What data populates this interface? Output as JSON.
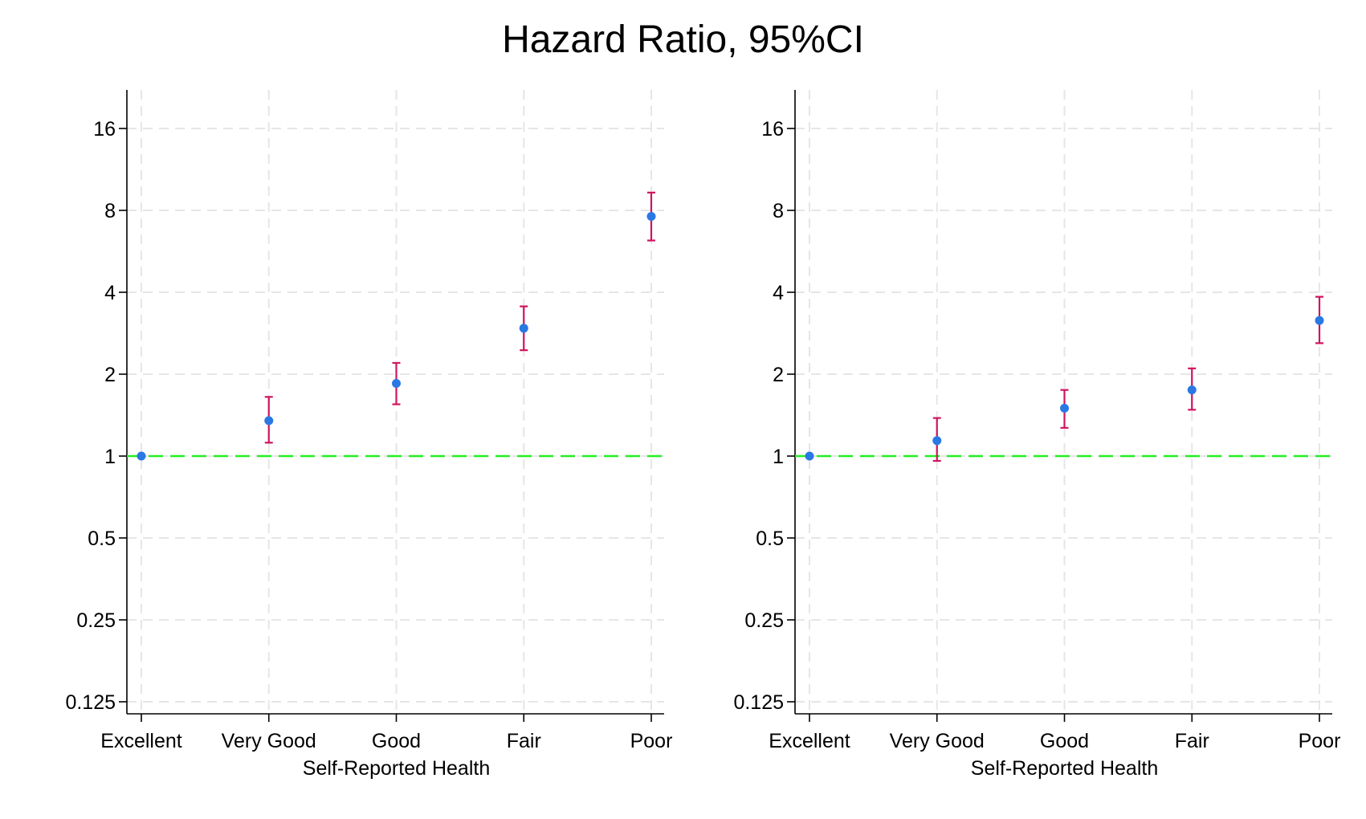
{
  "title": "Hazard Ratio, 95%CI",
  "colors": {
    "point": "#2a78e4",
    "ci": "#d0145f",
    "reference_line": "#22ee22",
    "grid": "#e6e6e6",
    "axis": "#000000"
  },
  "chart_data": [
    {
      "type": "scatter",
      "title": "",
      "xlabel": "Self-Reported Health",
      "ylabel": "",
      "yscale": "log2",
      "ylim": [
        0.11,
        21
      ],
      "yticks": [
        "0.125",
        "0.25",
        "0.5",
        "1",
        "2",
        "4",
        "8",
        "16"
      ],
      "categories": [
        "Excellent",
        "Very Good",
        "Good",
        "Fair",
        "Poor"
      ],
      "grid": true,
      "reference_line": 1,
      "estimates": [
        1.0,
        1.35,
        1.85,
        2.95,
        7.6
      ],
      "ci_lower": [
        null,
        1.12,
        1.55,
        2.45,
        6.2
      ],
      "ci_upper": [
        null,
        1.65,
        2.2,
        3.55,
        9.3
      ]
    },
    {
      "type": "scatter",
      "title": "",
      "xlabel": "Self-Reported Health",
      "ylabel": "",
      "yscale": "log2",
      "ylim": [
        0.11,
        21
      ],
      "yticks": [
        "0.125",
        "0.25",
        "0.5",
        "1",
        "2",
        "4",
        "8",
        "16"
      ],
      "categories": [
        "Excellent",
        "Very Good",
        "Good",
        "Fair",
        "Poor"
      ],
      "grid": true,
      "reference_line": 1,
      "estimates": [
        1.0,
        1.14,
        1.5,
        1.75,
        3.15
      ],
      "ci_lower": [
        null,
        0.96,
        1.27,
        1.48,
        2.6
      ],
      "ci_upper": [
        null,
        1.38,
        1.75,
        2.1,
        3.85
      ]
    }
  ]
}
